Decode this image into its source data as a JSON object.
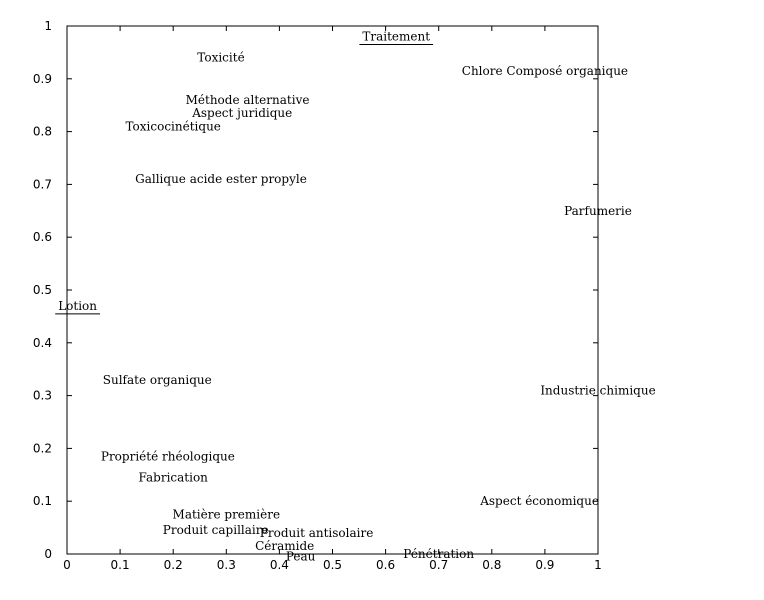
{
  "chart_data": {
    "type": "scatter",
    "xlim": [
      0,
      1
    ],
    "ylim": [
      0,
      1
    ],
    "x_ticks": [
      "0",
      "0.1",
      "0.2",
      "0.3",
      "0.4",
      "0.5",
      "0.6",
      "0.7",
      "0.8",
      "0.9",
      "1"
    ],
    "y_ticks": [
      "0",
      "0.1",
      "0.2",
      "0.3",
      "0.4",
      "0.5",
      "0.6",
      "0.7",
      "0.8",
      "0.9",
      "1"
    ],
    "grid": false,
    "points": [
      {
        "label": "Traitement",
        "x": 0.62,
        "y": 0.98,
        "underline": true
      },
      {
        "label": "Toxicité",
        "x": 0.29,
        "y": 0.94
      },
      {
        "label": "Chlore Composé organique",
        "x": 0.9,
        "y": 0.915
      },
      {
        "label": "Méthode alternative",
        "x": 0.34,
        "y": 0.86
      },
      {
        "label": "Aspect juridique",
        "x": 0.33,
        "y": 0.835
      },
      {
        "label": "Toxicocinétique",
        "x": 0.2,
        "y": 0.81
      },
      {
        "label": "Gallique acide ester propyle",
        "x": 0.29,
        "y": 0.71
      },
      {
        "label": "Parfumerie",
        "x": 1.0,
        "y": 0.65
      },
      {
        "label": "Lotion",
        "x": 0.02,
        "y": 0.47,
        "underline": true
      },
      {
        "label": "Sulfate organique",
        "x": 0.17,
        "y": 0.33
      },
      {
        "label": "Industrie chimique",
        "x": 1.0,
        "y": 0.31
      },
      {
        "label": "Propriété rhéologique",
        "x": 0.19,
        "y": 0.185
      },
      {
        "label": "Fabrication",
        "x": 0.2,
        "y": 0.145
      },
      {
        "label": "Aspect économique",
        "x": 0.89,
        "y": 0.1
      },
      {
        "label": "Matière première",
        "x": 0.3,
        "y": 0.075
      },
      {
        "label": "Produit capillaire",
        "x": 0.28,
        "y": 0.045
      },
      {
        "label": "Produit antisolaire",
        "x": 0.47,
        "y": 0.04
      },
      {
        "label": "Céramide",
        "x": 0.41,
        "y": 0.015
      },
      {
        "label": "Peau",
        "x": 0.44,
        "y": -0.005
      },
      {
        "label": "Pénétration",
        "x": 0.7,
        "y": 0.0
      }
    ]
  }
}
